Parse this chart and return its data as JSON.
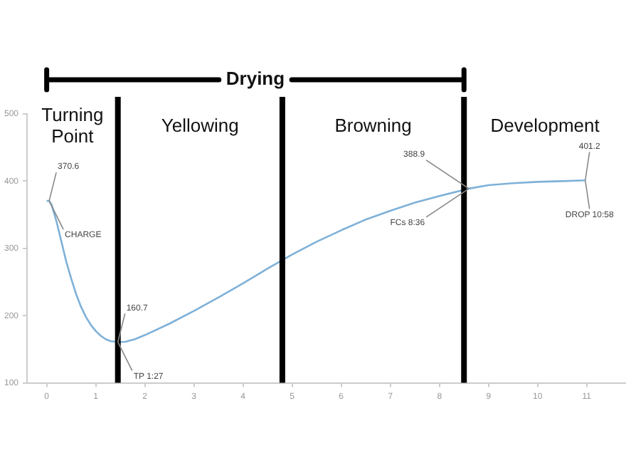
{
  "chart_data": {
    "type": "line",
    "x": [
      0,
      0.05,
      0.1,
      0.2,
      0.3,
      0.4,
      0.5,
      0.6,
      0.7,
      0.8,
      0.9,
      1.0,
      1.1,
      1.2,
      1.3,
      1.45,
      1.6,
      1.8,
      2,
      2.5,
      3,
      3.5,
      4,
      4.5,
      5,
      5.5,
      6,
      6.5,
      7,
      7.5,
      8,
      8.6,
      9,
      9.5,
      10,
      10.5,
      10.97
    ],
    "series": [
      {
        "color": "#7fb1d8",
        "values": [
          370.6,
          370.6,
          365,
          340,
          310,
          280,
          255,
          232,
          213,
          198,
          186,
          177,
          170,
          165,
          162,
          160.7,
          161,
          165,
          171,
          188,
          207,
          227,
          248,
          270,
          291,
          310,
          327,
          343,
          356,
          368,
          378,
          388.9,
          394,
          397,
          399,
          400,
          401.2
        ]
      }
    ],
    "xlim": [
      -0.4,
      11.8
    ],
    "xticks": [
      0,
      1,
      2,
      3,
      4,
      5,
      6,
      7,
      8,
      9,
      10,
      11
    ],
    "ylim": [
      100,
      500
    ],
    "yticks": [
      100,
      200,
      300,
      400,
      500
    ],
    "grid": false,
    "legend": false,
    "marker": "none",
    "line_style": "solid",
    "ref_lines": [
      {
        "axis": "x",
        "value": 1.45,
        "color": "#000000"
      },
      {
        "axis": "x",
        "value": 4.8,
        "color": "#000000"
      },
      {
        "axis": "x",
        "value": 8.5,
        "color": "#000000"
      }
    ],
    "annotations": [
      {
        "text": "370.6",
        "x": 0.05,
        "y": 370.6
      },
      {
        "text": "CHARGE",
        "x": 0.05,
        "y": 370.6
      },
      {
        "text": "160.7",
        "x": 1.45,
        "y": 160.7
      },
      {
        "text": "TP 1:27",
        "x": 1.45,
        "y": 160.7
      },
      {
        "text": "388.9",
        "x": 8.6,
        "y": 388.9
      },
      {
        "text": "FCs 8:36",
        "x": 8.6,
        "y": 388.9
      },
      {
        "text": "401.2",
        "x": 10.97,
        "y": 401.2
      },
      {
        "text": "DROP 10:58",
        "x": 10.97,
        "y": 401.2
      },
      "Turning Point",
      "Yellowing",
      "Browning",
      "Development",
      "Drying"
    ]
  }
}
